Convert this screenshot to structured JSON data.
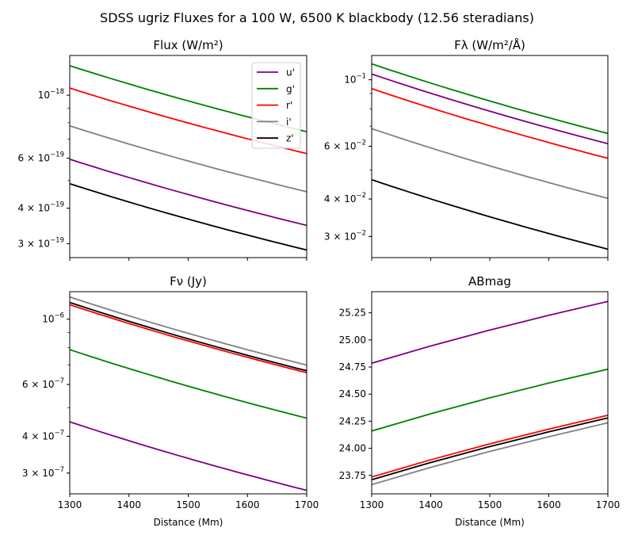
{
  "figure_title": "SDSS ugriz Fluxes for a 100 W, 6500 K blackbody (12.56 steradians)",
  "legend": [
    {
      "label": "u'",
      "color": "#800080"
    },
    {
      "label": "g'",
      "color": "#008000"
    },
    {
      "label": "r'",
      "color": "#ff0000"
    },
    {
      "label": "i'",
      "color": "#808080"
    },
    {
      "label": "z'",
      "color": "#000000"
    }
  ],
  "chart_data": [
    {
      "type": "line",
      "title": "Flux (W/m²)",
      "xlabel": "",
      "ylabel": "",
      "yscale": "log",
      "xlim": [
        1300,
        1700
      ],
      "ylim": [
        2.68e-19,
        1.38e-18
      ],
      "x": [
        1300,
        1700
      ],
      "xticks": [
        "1300",
        "1400",
        "1500",
        "1600",
        "1700"
      ],
      "yticks": [
        {
          "value": 1e-18,
          "mant": "10",
          "exp": "−18"
        },
        {
          "value": 6e-19,
          "mant": "6 × 10",
          "exp": "−19"
        },
        {
          "value": 4e-19,
          "mant": "4 × 10",
          "exp": "−19"
        },
        {
          "value": 3e-19,
          "mant": "3 × 10",
          "exp": "−19"
        }
      ],
      "legend_position": "upper right",
      "series": [
        {
          "name": "u'",
          "values": [
            5.95e-19,
            3.48e-19
          ]
        },
        {
          "name": "g'",
          "values": [
            1.27e-18,
            7.44e-19
          ]
        },
        {
          "name": "r'",
          "values": [
            1.06e-18,
            6.23e-19
          ]
        },
        {
          "name": "i'",
          "values": [
            7.8e-19,
            4.57e-19
          ]
        },
        {
          "name": "z'",
          "values": [
            4.88e-19,
            2.85e-19
          ]
        }
      ]
    },
    {
      "type": "line",
      "title": "Fλ (W/m²/Å)",
      "xlabel": "",
      "ylabel": "",
      "yscale": "log",
      "xlim": [
        1300,
        1700
      ],
      "ylim": [
        0.0255,
        0.1205
      ],
      "x": [
        1300,
        1700
      ],
      "xticks": [
        "1300",
        "1400",
        "1500",
        "1600",
        "1700"
      ],
      "yticks": [
        {
          "value": 0.1,
          "mant": "10",
          "exp": "−1"
        },
        {
          "value": 0.06,
          "mant": "6 × 10",
          "exp": "−2"
        },
        {
          "value": 0.04,
          "mant": "4 × 10",
          "exp": "−2"
        },
        {
          "value": 0.03,
          "mant": "3 × 10",
          "exp": "−2"
        }
      ],
      "series": [
        {
          "name": "u'",
          "values": [
            0.1045,
            0.0612
          ]
        },
        {
          "name": "g'",
          "values": [
            0.113,
            0.0662
          ]
        },
        {
          "name": "r'",
          "values": [
            0.0934,
            0.0547
          ]
        },
        {
          "name": "i'",
          "values": [
            0.0687,
            0.0402
          ]
        },
        {
          "name": "z'",
          "values": [
            0.0464,
            0.0272
          ]
        }
      ]
    },
    {
      "type": "line",
      "title": "Fν (Jy)",
      "xlabel": "Distance (Mm)",
      "ylabel": "",
      "yscale": "log",
      "xlim": [
        1300,
        1700
      ],
      "ylim": [
        2.55e-07,
        1.24e-06
      ],
      "x": [
        1300,
        1700
      ],
      "xticks": [
        "1300",
        "1400",
        "1500",
        "1600",
        "1700"
      ],
      "yticks": [
        {
          "value": 1e-06,
          "mant": "10",
          "exp": "−6"
        },
        {
          "value": 6e-07,
          "mant": "6 × 10",
          "exp": "−7"
        },
        {
          "value": 4e-07,
          "mant": "4 × 10",
          "exp": "−7"
        },
        {
          "value": 3e-07,
          "mant": "3 × 10",
          "exp": "−7"
        }
      ],
      "series": [
        {
          "name": "u'",
          "values": [
            4.48e-07,
            2.62e-07
          ]
        },
        {
          "name": "g'",
          "values": [
            7.88e-07,
            4.61e-07
          ]
        },
        {
          "name": "r'",
          "values": [
            1.12e-06,
            6.58e-07
          ]
        },
        {
          "name": "i'",
          "values": [
            1.19e-06,
            6.98e-07
          ]
        },
        {
          "name": "z'",
          "values": [
            1.14e-06,
            6.68e-07
          ]
        }
      ]
    },
    {
      "type": "line",
      "title": "ABmag",
      "xlabel": "Distance (Mm)",
      "ylabel": "",
      "yscale": "linear",
      "xlim": [
        1300,
        1700
      ],
      "ylim": [
        23.58,
        25.445
      ],
      "x": [
        1300,
        1400,
        1500,
        1600,
        1700
      ],
      "xticks": [
        "1300",
        "1400",
        "1500",
        "1600",
        "1700"
      ],
      "yticks": [
        {
          "value": 25.25,
          "text": "25.25"
        },
        {
          "value": 25.0,
          "text": "25.00"
        },
        {
          "value": 24.75,
          "text": "24.75"
        },
        {
          "value": 24.5,
          "text": "24.50"
        },
        {
          "value": 24.25,
          "text": "24.25"
        },
        {
          "value": 24.0,
          "text": "24.00"
        },
        {
          "value": 23.75,
          "text": "23.75"
        }
      ],
      "series": [
        {
          "name": "u'",
          "values": [
            24.785,
            24.944,
            25.091,
            25.227,
            25.355
          ]
        },
        {
          "name": "g'",
          "values": [
            24.16,
            24.319,
            24.466,
            24.602,
            24.73
          ]
        },
        {
          "name": "r'",
          "values": [
            23.735,
            23.894,
            24.041,
            24.177,
            24.305
          ]
        },
        {
          "name": "i'",
          "values": [
            23.665,
            23.824,
            23.971,
            24.107,
            24.235
          ]
        },
        {
          "name": "z'",
          "values": [
            23.71,
            23.869,
            24.016,
            24.152,
            24.28
          ]
        }
      ]
    }
  ]
}
